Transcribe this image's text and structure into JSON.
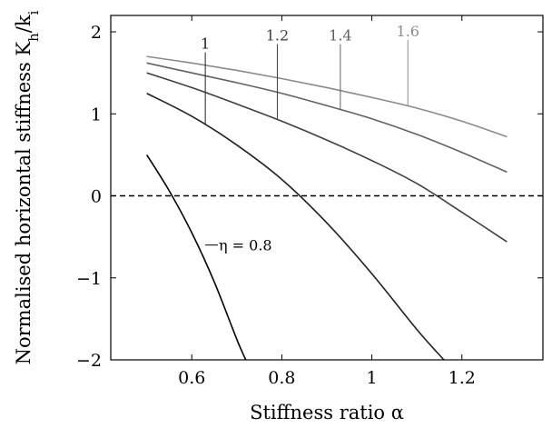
{
  "chart_data": {
    "type": "line",
    "xlabel": "Stiffness ratio α",
    "ylabel": "Normalised horizontal stiffness K_h/k_i",
    "xlim": [
      0.42,
      1.38
    ],
    "ylim": [
      -2,
      2.2
    ],
    "grid": false,
    "x_ticks": [
      {
        "value": 0.6,
        "label": "0.6"
      },
      {
        "value": 0.8,
        "label": "0.8"
      },
      {
        "value": 1.0,
        "label": "1"
      },
      {
        "value": 1.2,
        "label": "1.2"
      }
    ],
    "y_ticks": [
      {
        "value": -2,
        "label": "−2"
      },
      {
        "value": -1,
        "label": "−1"
      },
      {
        "value": 0,
        "label": "0"
      },
      {
        "value": 1,
        "label": "1"
      },
      {
        "value": 2,
        "label": "2"
      }
    ],
    "reference_line": {
      "y": 0,
      "style": "dashed"
    },
    "series": [
      {
        "name": "η = 0.8",
        "color": "#000000",
        "x": [
          0.5,
          0.55,
          0.6,
          0.65,
          0.7,
          0.72
        ],
        "y": [
          0.5,
          0.06,
          -0.45,
          -1.05,
          -1.75,
          -2.0
        ],
        "label": {
          "text": "η = 0.8",
          "leader_from": [
            0.64,
            -0.6
          ],
          "anchor": [
            0.66,
            -0.6
          ]
        }
      },
      {
        "name": "1",
        "color": "#1f1f1f",
        "x": [
          0.5,
          0.6,
          0.7,
          0.8,
          0.9,
          1.0,
          1.1,
          1.16
        ],
        "y": [
          1.25,
          0.97,
          0.62,
          0.2,
          -0.33,
          -0.95,
          -1.63,
          -2.0
        ],
        "label": {
          "text": "1",
          "leader_x": 0.63,
          "leader_top": 1.75
        }
      },
      {
        "name": "1.2",
        "color": "#3f3f3f",
        "x": [
          0.5,
          0.6,
          0.7,
          0.8,
          0.9,
          1.0,
          1.1,
          1.2,
          1.3
        ],
        "y": [
          1.5,
          1.32,
          1.12,
          0.91,
          0.68,
          0.43,
          0.15,
          -0.2,
          -0.56
        ],
        "label": {
          "text": "1.2",
          "leader_x": 0.79,
          "leader_top": 1.85
        }
      },
      {
        "name": "1.4",
        "color": "#616161",
        "x": [
          0.5,
          0.6,
          0.7,
          0.8,
          0.9,
          1.0,
          1.1,
          1.2,
          1.3
        ],
        "y": [
          1.62,
          1.5,
          1.38,
          1.25,
          1.1,
          0.94,
          0.75,
          0.53,
          0.29
        ],
        "label": {
          "text": "1.4",
          "leader_x": 0.93,
          "leader_top": 1.85
        }
      },
      {
        "name": "1.6",
        "color": "#8a8a8a",
        "x": [
          0.5,
          0.6,
          0.7,
          0.8,
          0.9,
          1.0,
          1.1,
          1.2,
          1.3
        ],
        "y": [
          1.7,
          1.62,
          1.53,
          1.43,
          1.32,
          1.2,
          1.07,
          0.91,
          0.72
        ],
        "label": {
          "text": "1.6",
          "leader_x": 1.08,
          "leader_top": 1.9
        }
      }
    ]
  }
}
